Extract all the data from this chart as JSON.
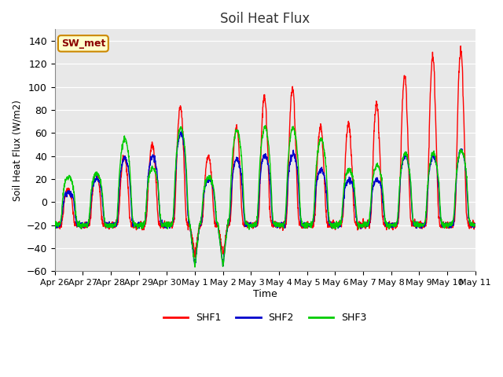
{
  "title": "Soil Heat Flux",
  "ylabel": "Soil Heat Flux (W/m2)",
  "xlabel": "Time",
  "ylim": [
    -60,
    150
  ],
  "yticks": [
    -60,
    -40,
    -20,
    0,
    20,
    40,
    60,
    80,
    100,
    120,
    140
  ],
  "xtick_labels": [
    "Apr 26",
    "Apr 27",
    "Apr 28",
    "Apr 29",
    "Apr 30",
    "May 1",
    "May 2",
    "May 3",
    "May 4",
    "May 5",
    "May 6",
    "May 7",
    "May 8",
    "May 9",
    "May 10",
    "May 11"
  ],
  "colors": {
    "SHF1": "#ff0000",
    "SHF2": "#0000cc",
    "SHF3": "#00cc00"
  },
  "bg_color": "#e8e8e8",
  "plot_bg": "#e8e8e8",
  "annotation_text": "SW_met",
  "annotation_bg": "#ffffcc",
  "annotation_border": "#cc8800",
  "shf1_day_amps": [
    10,
    25,
    40,
    50,
    83,
    40,
    65,
    84,
    90,
    60,
    62,
    78,
    100,
    115,
    120
  ],
  "shf2_day_amps": [
    8,
    20,
    38,
    40,
    60,
    20,
    37,
    41,
    42,
    28,
    19,
    20,
    40,
    40,
    45
  ],
  "shf3_day_amps": [
    22,
    25,
    55,
    30,
    65,
    22,
    63,
    65,
    65,
    55,
    28,
    32,
    42,
    42,
    45
  ],
  "night_base": -20,
  "deep_trough_days": [
    4,
    5
  ],
  "deep_trough_val1": -45,
  "deep_trough_val23": -55
}
